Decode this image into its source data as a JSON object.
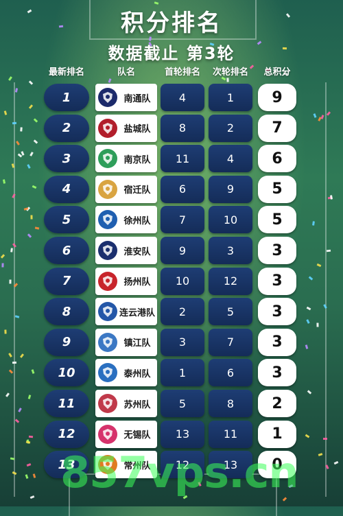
{
  "title": "积分排名",
  "subtitle": "数据截止 第3轮",
  "headers": {
    "rank": "最新排名",
    "team": "队名",
    "round1": "首轮排名",
    "round2": "次轮排名",
    "total": "总积分"
  },
  "rows": [
    {
      "rank": "1",
      "team": "南通队",
      "round1": "4",
      "round2": "1",
      "total": "9",
      "logo_color": "#1c2a6b",
      "logo_icon": "nantong-crest-icon"
    },
    {
      "rank": "2",
      "team": "盐城队",
      "round1": "8",
      "round2": "2",
      "total": "7",
      "logo_color": "#b21e2b",
      "logo_icon": "yancheng-crest-icon"
    },
    {
      "rank": "3",
      "team": "南京队",
      "round1": "11",
      "round2": "4",
      "total": "6",
      "logo_color": "#2e9e5a",
      "logo_icon": "nanjing-crest-icon"
    },
    {
      "rank": "4",
      "team": "宿迁队",
      "round1": "6",
      "round2": "9",
      "total": "5",
      "logo_color": "#d9a441",
      "logo_icon": "suqian-crest-icon"
    },
    {
      "rank": "5",
      "team": "徐州队",
      "round1": "7",
      "round2": "10",
      "total": "5",
      "logo_color": "#1f5fb0",
      "logo_icon": "xuzhou-crest-icon"
    },
    {
      "rank": "6",
      "team": "淮安队",
      "round1": "9",
      "round2": "3",
      "total": "3",
      "logo_color": "#1b2f6e",
      "logo_icon": "huaian-crest-icon"
    },
    {
      "rank": "7",
      "team": "扬州队",
      "round1": "10",
      "round2": "12",
      "total": "3",
      "logo_color": "#c8242b",
      "logo_icon": "yangzhou-crest-icon"
    },
    {
      "rank": "8",
      "team": "连云港队",
      "round1": "2",
      "round2": "5",
      "total": "3",
      "logo_color": "#2457a8",
      "logo_icon": "lianyungang-crest-icon"
    },
    {
      "rank": "9",
      "team": "镇江队",
      "round1": "3",
      "round2": "7",
      "total": "3",
      "logo_color": "#3b78c4",
      "logo_icon": "zhenjiang-crest-icon"
    },
    {
      "rank": "10",
      "team": "泰州队",
      "round1": "1",
      "round2": "6",
      "total": "3",
      "logo_color": "#2a6fc0",
      "logo_icon": "taizhou-crest-icon"
    },
    {
      "rank": "11",
      "team": "苏州队",
      "round1": "5",
      "round2": "8",
      "total": "2",
      "logo_color": "#c0394a",
      "logo_icon": "suzhou-crest-icon"
    },
    {
      "rank": "12",
      "team": "无锡队",
      "round1": "13",
      "round2": "11",
      "total": "1",
      "logo_color": "#d6336c",
      "logo_icon": "wuxi-crest-icon"
    },
    {
      "rank": "13",
      "team": "常州队",
      "round1": "12",
      "round2": "13",
      "total": "0",
      "logo_color": "#e07b22",
      "logo_icon": "changzhou-crest-icon"
    }
  ],
  "watermark": "857vps.cn",
  "colors": {
    "pill": "#1a3566",
    "background": "#2f7a56",
    "text": "#ffffff"
  }
}
